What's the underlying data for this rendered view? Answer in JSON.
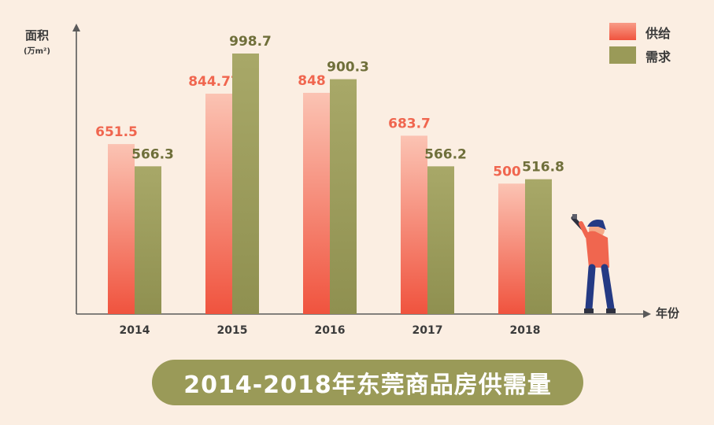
{
  "chart_data": {
    "type": "bar",
    "title": "2014-2018年东莞商品房供需量",
    "ylabel": "面积",
    "yunit": "(万m²)",
    "xlabel": "年份",
    "categories": [
      "2014",
      "2015",
      "2016",
      "2017",
      "2018"
    ],
    "series": [
      {
        "name": "供给",
        "values": [
          651.5,
          844.77,
          848,
          683.7,
          500
        ],
        "labels": [
          "651.5",
          "844.77",
          "848",
          "683.7",
          "500"
        ],
        "color": "#f0664f"
      },
      {
        "name": "需求",
        "values": [
          566.3,
          998.7,
          900.3,
          566.2,
          516.8
        ],
        "labels": [
          "566.3",
          "998.7",
          "900.3",
          "566.2",
          "516.8"
        ],
        "color": "#9a9a58"
      }
    ],
    "ylim": [
      0,
      1050
    ],
    "grid": false,
    "legend": "top-right"
  }
}
